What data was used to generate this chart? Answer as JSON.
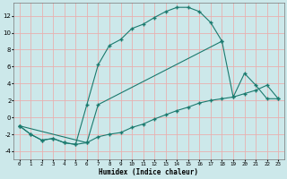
{
  "xlabel": "Humidex (Indice chaleur)",
  "bg_color": "#cce8ea",
  "grid_color": "#e8b0b0",
  "line_color": "#1a7a6e",
  "xlim": [
    -0.5,
    23.5
  ],
  "ylim": [
    -5,
    13.5
  ],
  "xticks": [
    0,
    1,
    2,
    3,
    4,
    5,
    6,
    7,
    8,
    9,
    10,
    11,
    12,
    13,
    14,
    15,
    16,
    17,
    18,
    19,
    20,
    21,
    22,
    23
  ],
  "yticks": [
    -4,
    -2,
    0,
    2,
    4,
    6,
    8,
    10,
    12
  ],
  "curve1_x": [
    0,
    1,
    2,
    3,
    4,
    5,
    6,
    7,
    8,
    9,
    10,
    11,
    12,
    13,
    14,
    15,
    16,
    17,
    18
  ],
  "curve1_y": [
    -1,
    -2,
    -2.7,
    -2.5,
    -3.0,
    -3.2,
    1.5,
    6.2,
    8.5,
    9.2,
    10.5,
    11.0,
    11.8,
    12.5,
    13.0,
    13.0,
    12.5,
    11.2,
    9.0
  ],
  "curve2_x": [
    0,
    1,
    2,
    3,
    4,
    5,
    6,
    7,
    8,
    9,
    10,
    11,
    12,
    13,
    14,
    15,
    16,
    17,
    18,
    19,
    20,
    21,
    22,
    23
  ],
  "curve2_y": [
    -1,
    -2,
    -2.7,
    -2.5,
    -3.0,
    -3.2,
    -3.0,
    -2.3,
    -2.0,
    -1.8,
    -1.2,
    -0.8,
    -0.2,
    0.3,
    0.8,
    1.2,
    1.7,
    2.0,
    2.2,
    2.4,
    2.8,
    3.2,
    3.8,
    2.2
  ],
  "curve3_x": [
    0,
    6,
    7,
    18,
    19,
    20,
    21,
    22,
    23
  ],
  "curve3_y": [
    -1,
    -3.0,
    1.5,
    9.0,
    2.4,
    5.2,
    3.8,
    2.2,
    2.2
  ]
}
